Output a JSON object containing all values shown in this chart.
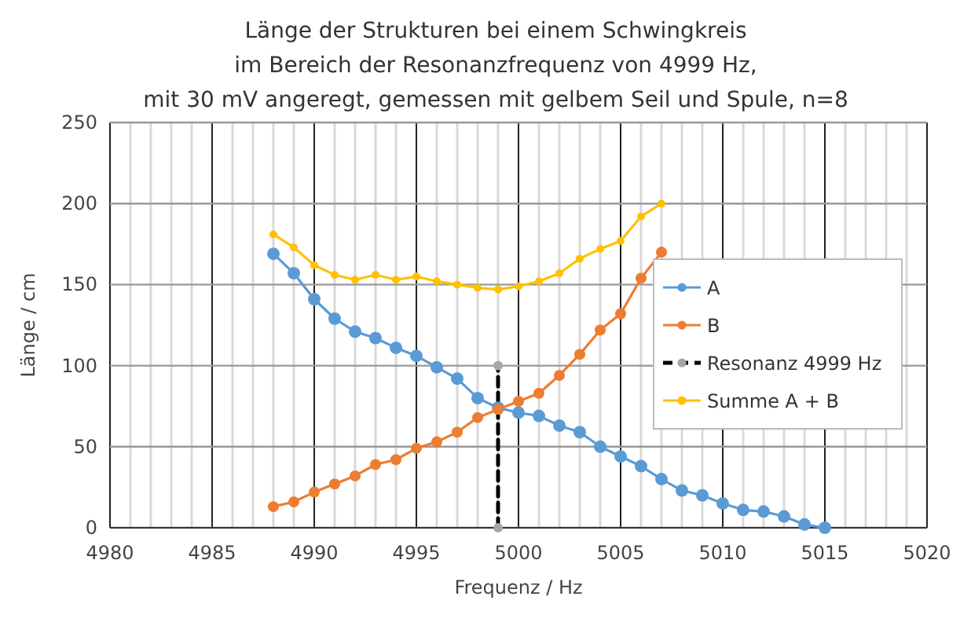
{
  "chart_data": {
    "type": "line",
    "title": "Länge der Strukturen bei einem Schwingkreis\nim Bereich der Resonanzfrequenz von 4999 Hz,\nmit 30 mV angeregt, gemessen mit gelbem Seil und Spule, n=8",
    "xlabel": "Frequenz / Hz",
    "ylabel": "Länge / cm",
    "series": [
      {
        "name": "A",
        "color": "#5b9bd5",
        "x": [
          4988,
          4989,
          4990,
          4991,
          4992,
          4993,
          4994,
          4995,
          4996,
          4997,
          4998,
          4999,
          5000,
          5001,
          5002,
          5003,
          5004,
          5005,
          5006,
          5007,
          5008,
          5009,
          5010,
          5011,
          5012,
          5013,
          5014,
          5015
        ],
        "values": [
          169,
          157,
          141,
          129,
          121,
          117,
          111,
          106,
          99,
          92,
          80,
          74,
          71,
          69,
          63,
          59,
          50,
          44,
          38,
          30,
          23,
          20,
          15,
          11,
          10,
          7,
          2,
          0
        ]
      },
      {
        "name": "B",
        "color": "#ed7d31",
        "x": [
          4988,
          4989,
          4990,
          4991,
          4992,
          4993,
          4994,
          4995,
          4996,
          4997,
          4998,
          4999,
          5000,
          5001,
          5002,
          5003,
          5004,
          5005,
          5006,
          5007
        ],
        "values": [
          13,
          16,
          22,
          27,
          32,
          39,
          42,
          49,
          53,
          59,
          68,
          73,
          78,
          83,
          94,
          107,
          122,
          132,
          154,
          170
        ]
      },
      {
        "name": "Resonanz 4999 Hz",
        "color": "#000000",
        "line_style": "dashed",
        "x": [
          4999,
          4999
        ],
        "values": [
          0,
          100
        ]
      },
      {
        "name": "Summe A + B",
        "color": "#ffc000",
        "x": [
          4988,
          4989,
          4990,
          4991,
          4992,
          4993,
          4994,
          4995,
          4996,
          4997,
          4998,
          4999,
          5000,
          5001,
          5002,
          5003,
          5004,
          5005,
          5006,
          5007
        ],
        "values": [
          181,
          173,
          162,
          156,
          153,
          156,
          153,
          155,
          152,
          150,
          148,
          147,
          149,
          152,
          157,
          166,
          172,
          177,
          192,
          200
        ]
      }
    ],
    "xlim": [
      4980,
      5020
    ],
    "xticks": [
      4980,
      {
        "value": 4981,
        "label": null
      },
      {
        "value": 4982,
        "label": null
      },
      {
        "value": 4983,
        "label": null
      },
      {
        "value": 4984,
        "label": null
      },
      4985,
      {
        "value": 4986,
        "label": null
      },
      {
        "value": 4987,
        "label": null
      },
      {
        "value": 4988,
        "label": null
      },
      {
        "value": 4989,
        "label": null
      },
      4990,
      {
        "value": 4991,
        "label": null
      },
      {
        "value": 4992,
        "label": null
      },
      {
        "value": 4993,
        "label": null
      },
      {
        "value": 4994,
        "label": null
      },
      4995,
      {
        "value": 4996,
        "label": null
      },
      {
        "value": 4997,
        "label": null
      },
      {
        "value": 4998,
        "label": null
      },
      {
        "value": 4999,
        "label": null
      },
      5000,
      {
        "value": 5001,
        "label": null
      },
      {
        "value": 5002,
        "label": null
      },
      {
        "value": 5003,
        "label": null
      },
      {
        "value": 5004,
        "label": null
      },
      5005,
      {
        "value": 5006,
        "label": null
      },
      {
        "value": 5007,
        "label": null
      },
      {
        "value": 5008,
        "label": null
      },
      {
        "value": 5009,
        "label": null
      },
      5010,
      {
        "value": 5011,
        "label": null
      },
      {
        "value": 5012,
        "label": null
      },
      {
        "value": 5013,
        "label": null
      },
      {
        "value": 5014,
        "label": null
      },
      5015,
      {
        "value": 5016,
        "label": null
      },
      {
        "value": 5017,
        "label": null
      },
      {
        "value": 5018,
        "label": null
      },
      {
        "value": 5019,
        "label": null
      },
      5020
    ],
    "ylim": [
      0,
      250
    ],
    "yticks": [
      0,
      50,
      100,
      150,
      200,
      250
    ],
    "grid": true,
    "legend": "right",
    "marker": "circle",
    "line_style": "solid"
  }
}
